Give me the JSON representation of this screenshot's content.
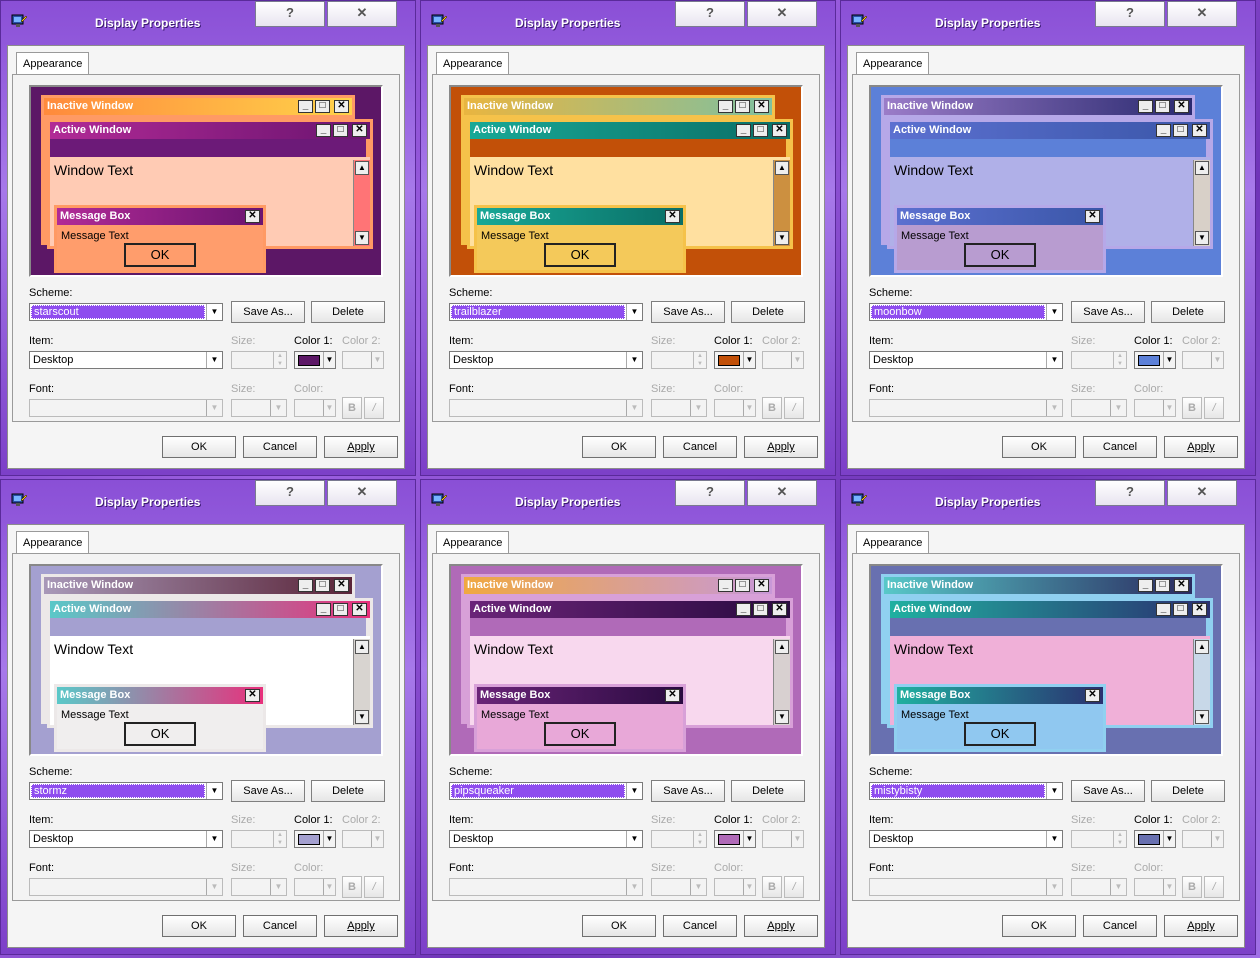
{
  "dialog": {
    "title": "Display Properties",
    "help_label": "?",
    "close_label": "✕",
    "tab": "Appearance",
    "scheme_label": "Scheme:",
    "save_as_label": "Save As...",
    "delete_label": "Delete",
    "item_label": "Item:",
    "item_value": "Desktop",
    "size_label": "Size:",
    "color1_label": "Color 1:",
    "color2_label": "Color 2:",
    "font_label": "Font:",
    "font_color_label": "Color:",
    "bold_label": "B",
    "italic_label": "/",
    "ok_label": "OK",
    "cancel_label": "Cancel",
    "apply_label": "Apply"
  },
  "preview": {
    "inactive_window": "Inactive Window",
    "active_window": "Active Window",
    "window_text": "Window Text",
    "message_box": "Message Box",
    "message_text": "Message Text",
    "ok": "OK"
  },
  "dialogs": [
    {
      "scheme": "starscout",
      "desktop": "#5c1766",
      "inactive_a": "#ff8a3c",
      "inactive_b": "#ffd24a",
      "active_a": "#b12a96",
      "active_b": "#6b1470",
      "border": "#ff9a64",
      "menu": "#6c1a78",
      "window_bg": "#ffcbb4",
      "msg_bg": "#ff9d6c",
      "scroll": "#ff7476",
      "swatch": "#5c1766",
      "dark": false
    },
    {
      "scheme": "trailblazer",
      "desktop": "#c25008",
      "inactive_a": "#e9b540",
      "inactive_b": "#7fc0a0",
      "active_a": "#18a896",
      "active_b": "#0a6e66",
      "border": "#f5c24a",
      "menu": "#c25008",
      "window_bg": "#ffe0a0",
      "msg_bg": "#f4c95a",
      "scroll": "#cc9040",
      "swatch": "#c25008",
      "dark": false
    },
    {
      "scheme": "moonbow",
      "desktop": "#5c80d8",
      "inactive_a": "#9b7cc8",
      "inactive_b": "#2a2a70",
      "active_a": "#5c70d0",
      "active_b": "#3a56a8",
      "border": "#b6a8e8",
      "menu": "#5c80d8",
      "window_bg": "#b0b0e8",
      "msg_bg": "#b89cd0",
      "scroll": "#d8d0c8",
      "swatch": "#5c80d8",
      "dark": false
    },
    {
      "scheme": "stormz",
      "desktop": "#a4a0d0",
      "inactive_a": "#a898b8",
      "inactive_b": "#5a2438",
      "active_a": "#5ac8c8",
      "active_b": "#e8307c",
      "border": "#ece8e8",
      "menu": "#a4a0d0",
      "window_bg": "#ffffff",
      "msg_bg": "#f0eeee",
      "scroll": "#d8d4d0",
      "swatch": "#a4a0d0",
      "dark": false
    },
    {
      "scheme": "pipsqueaker",
      "desktop": "#b06ab8",
      "inactive_a": "#f0a840",
      "inactive_b": "#c898d8",
      "active_a": "#6a2478",
      "active_b": "#2a0a40",
      "border": "#d8a0d8",
      "menu": "#b06ab8",
      "window_bg": "#f8d8ee",
      "msg_bg": "#e8a8d8",
      "scroll": "#d8d0d0",
      "swatch": "#b06ab8",
      "dark": false
    },
    {
      "scheme": "mistybisty",
      "desktop": "#6870b0",
      "inactive_a": "#58c8c8",
      "inactive_b": "#2a2a60",
      "active_a": "#20b0a0",
      "active_b": "#2a3070",
      "border": "#90d0f0",
      "menu": "#6870b0",
      "window_bg": "#f0b0d8",
      "msg_bg": "#90c8f0",
      "scroll": "#c8d8e8",
      "swatch": "#6870b0",
      "dark": false
    }
  ]
}
